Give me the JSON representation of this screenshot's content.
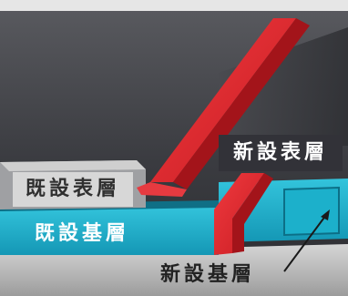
{
  "colors": {
    "background_dark": "#35363a",
    "existing_surface": "#d7d7d7",
    "existing_base": "#22b3cc",
    "new_base": "#1da6c4",
    "new_layer_red": "#e0242b",
    "base_ground": "#bdbdbd"
  },
  "labels": {
    "existing_surface_layer": "既設表層",
    "existing_base_layer": "既設基層",
    "new_surface_layer": "新設表層",
    "new_base_layer": "新設基層"
  }
}
